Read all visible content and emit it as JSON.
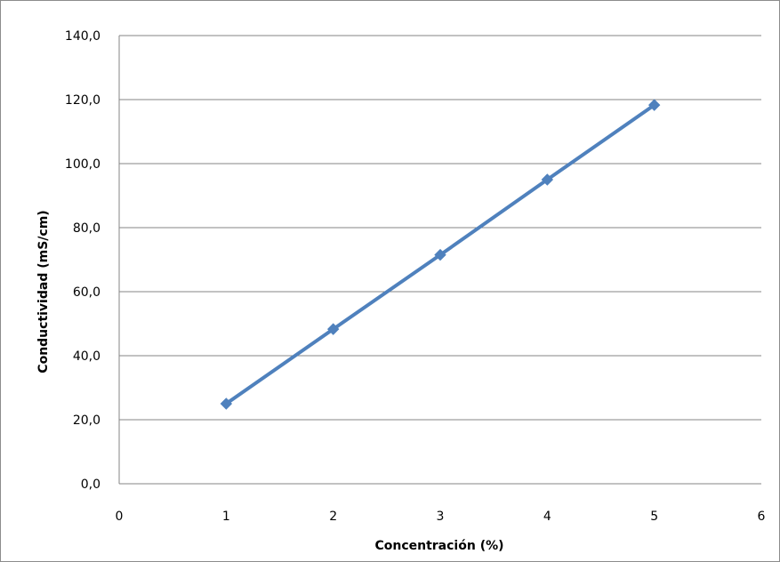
{
  "chart_data": {
    "type": "line",
    "title": "",
    "xlabel": "Concentración (%)",
    "ylabel": "Conductividad (mS/cm)",
    "xlim": [
      0,
      6
    ],
    "ylim": [
      0,
      140
    ],
    "x_ticks": [
      "0",
      "1",
      "2",
      "3",
      "4",
      "5",
      "6"
    ],
    "y_ticks": [
      "0,0",
      "20,0",
      "40,0",
      "60,0",
      "80,0",
      "100,0",
      "120,0",
      "140,0"
    ],
    "grid": "horizontal",
    "legend": "none",
    "marker": "diamond",
    "series": [
      {
        "color": "#4f81bd",
        "x": [
          1,
          2,
          3,
          4,
          5
        ],
        "y": [
          25.0,
          48.3,
          71.5,
          95.0,
          118.3
        ]
      }
    ]
  }
}
